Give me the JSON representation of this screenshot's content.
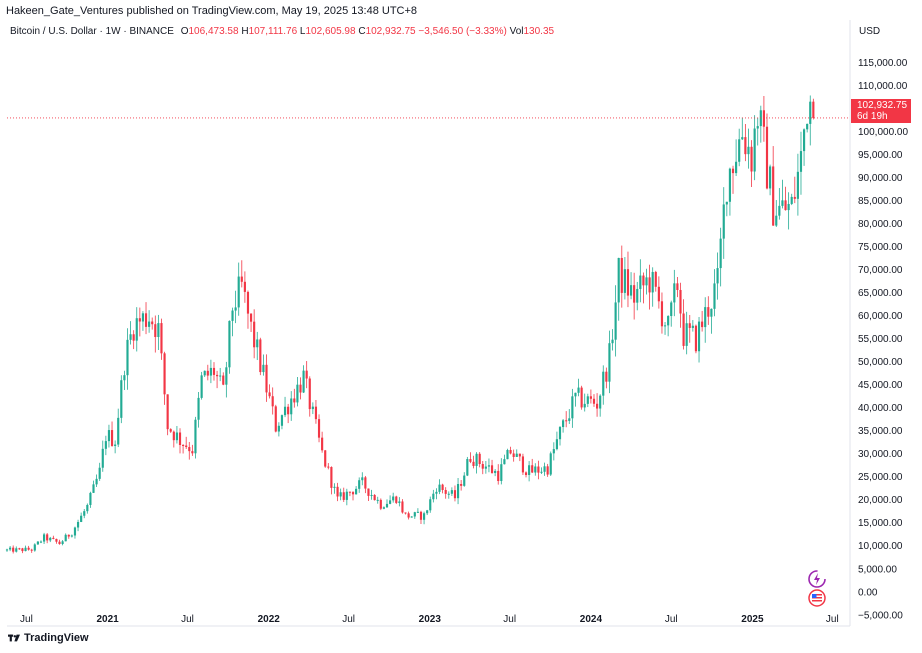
{
  "header": {
    "published": "Hakeen_Gate_Ventures published on TradingView.com, May 19, 2025 13:48 UTC+8"
  },
  "symbol": {
    "name": "Bitcoin / U.S. Dollar · 1W · BINANCE",
    "o_label": "O",
    "o": "106,473.58",
    "h_label": "H",
    "h": "107,111.76",
    "l_label": "L",
    "l": "102,605.98",
    "c_label": "C",
    "c": "102,932.75",
    "change": "−3,546.50 (−3.33%)",
    "vol_label": "Vol",
    "vol": "130.35"
  },
  "axis": {
    "currency": "USD",
    "last_price": "102,932.75",
    "countdown": "6d 19h"
  },
  "footer": {
    "brand": "TradingView"
  },
  "colors": {
    "up": "#22ab94",
    "down": "#f23645",
    "last_price_line": "#f23645"
  },
  "chart_data": {
    "type": "candlestick",
    "title": "Bitcoin / U.S. Dollar · 1W · BINANCE",
    "yticks": [
      -5000,
      0,
      5000,
      10000,
      15000,
      20000,
      25000,
      30000,
      35000,
      40000,
      45000,
      50000,
      55000,
      60000,
      65000,
      70000,
      75000,
      80000,
      85000,
      90000,
      95000,
      100000,
      105000,
      110000,
      115000
    ],
    "ytick_labels": [
      "−5,000.00",
      "0.00",
      "5,000.00",
      "10,000.00",
      "15,000.00",
      "20,000.00",
      "25,000.00",
      "30,000.00",
      "35,000.00",
      "40,000.00",
      "45,000.00",
      "50,000.00",
      "55,000.00",
      "60,000.00",
      "65,000.00",
      "70,000.00",
      "75,000.00",
      "80,000.00",
      "85,000.00",
      "90,000.00",
      "95,000.00",
      "100,000.00",
      "105,000.00",
      "110,000.00",
      "115,000.00"
    ],
    "ylim": [
      -7000,
      119000
    ],
    "x_range": [
      "2020-05-18",
      "2025-08-01"
    ],
    "xticks": [
      {
        "date": "2020-07-01",
        "label": "Jul",
        "bold": false
      },
      {
        "date": "2021-01-01",
        "label": "2021",
        "bold": true
      },
      {
        "date": "2021-07-01",
        "label": "Jul",
        "bold": false
      },
      {
        "date": "2022-01-01",
        "label": "2022",
        "bold": true
      },
      {
        "date": "2022-07-01",
        "label": "Jul",
        "bold": false
      },
      {
        "date": "2023-01-01",
        "label": "2023",
        "bold": true
      },
      {
        "date": "2023-07-01",
        "label": "Jul",
        "bold": false
      },
      {
        "date": "2024-01-01",
        "label": "2024",
        "bold": true
      },
      {
        "date": "2024-07-01",
        "label": "Jul",
        "bold": false
      },
      {
        "date": "2025-01-01",
        "label": "2025",
        "bold": true
      },
      {
        "date": "2025-07-01",
        "label": "Jul",
        "bold": false
      }
    ],
    "last_price": 102932.75,
    "price_anchors": [
      [
        "2020-05-18",
        9000
      ],
      [
        "2020-07-20",
        9200
      ],
      [
        "2020-08-17",
        11800
      ],
      [
        "2020-09-21",
        10500
      ],
      [
        "2020-10-19",
        13000
      ],
      [
        "2020-11-23",
        18500
      ],
      [
        "2020-12-21",
        26000
      ],
      [
        "2021-01-04",
        34000
      ],
      [
        "2021-01-25",
        33000
      ],
      [
        "2021-02-15",
        50000
      ],
      [
        "2021-03-08",
        58000
      ],
      [
        "2021-04-12",
        60000
      ],
      [
        "2021-05-03",
        57000
      ],
      [
        "2021-05-24",
        36000
      ],
      [
        "2021-06-21",
        33000
      ],
      [
        "2021-07-19",
        31000
      ],
      [
        "2021-08-09",
        46000
      ],
      [
        "2021-09-06",
        48000
      ],
      [
        "2021-09-27",
        43000
      ],
      [
        "2021-10-18",
        62000
      ],
      [
        "2021-11-08",
        66000
      ],
      [
        "2021-11-29",
        57000
      ],
      [
        "2021-12-27",
        47000
      ],
      [
        "2022-01-24",
        36000
      ],
      [
        "2022-02-28",
        42000
      ],
      [
        "2022-03-28",
        46500
      ],
      [
        "2022-05-09",
        30000
      ],
      [
        "2022-06-13",
        20000
      ],
      [
        "2022-08-08",
        23500
      ],
      [
        "2022-09-19",
        19000
      ],
      [
        "2022-10-24",
        20500
      ],
      [
        "2022-11-14",
        16500
      ],
      [
        "2022-12-26",
        16500
      ],
      [
        "2023-01-23",
        23000
      ],
      [
        "2023-03-06",
        20500
      ],
      [
        "2023-04-10",
        29500
      ],
      [
        "2023-06-12",
        25500
      ],
      [
        "2023-07-10",
        30500
      ],
      [
        "2023-08-21",
        26000
      ],
      [
        "2023-10-02",
        27000
      ],
      [
        "2023-10-30",
        34500
      ],
      [
        "2023-12-04",
        42000
      ],
      [
        "2024-01-22",
        41000
      ],
      [
        "2024-02-19",
        51000
      ],
      [
        "2024-03-11",
        69000
      ],
      [
        "2024-04-15",
        64000
      ],
      [
        "2024-05-20",
        68000
      ],
      [
        "2024-07-01",
        57000
      ],
      [
        "2024-07-22",
        67000
      ],
      [
        "2024-08-05",
        56000
      ],
      [
        "2024-09-02",
        55000
      ],
      [
        "2024-10-21",
        67000
      ],
      [
        "2024-11-11",
        90000
      ],
      [
        "2024-12-16",
        100000
      ],
      [
        "2025-01-06",
        95000
      ],
      [
        "2025-01-20",
        104000
      ],
      [
        "2025-02-24",
        84000
      ],
      [
        "2025-03-10",
        83000
      ],
      [
        "2025-04-07",
        83500
      ],
      [
        "2025-04-28",
        94000
      ],
      [
        "2025-05-12",
        106473.58
      ]
    ],
    "last_candle": {
      "date": "2025-05-19",
      "open": 106473.58,
      "high": 107111.76,
      "low": 102605.98,
      "close": 102932.75
    }
  }
}
